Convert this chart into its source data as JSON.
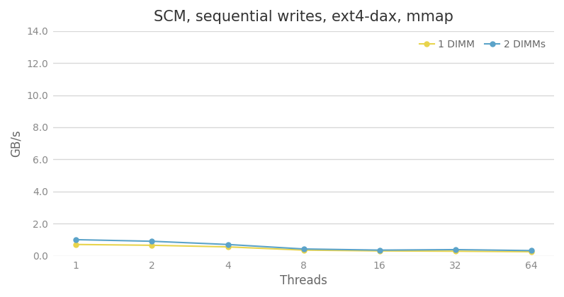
{
  "title": "SCM, sequential writes, ext4-dax, mmap",
  "xlabel": "Threads",
  "ylabel": "GB/s",
  "x_values": [
    1,
    2,
    4,
    8,
    16,
    32,
    64
  ],
  "x_labels": [
    "1",
    "2",
    "4",
    "8",
    "16",
    "32",
    "64"
  ],
  "series": [
    {
      "label": "1 DIMM",
      "values": [
        0.7,
        0.65,
        0.55,
        0.35,
        0.3,
        0.28,
        0.25
      ],
      "color": "#e8d44d",
      "marker": "o",
      "marker_size": 5,
      "linewidth": 1.5
    },
    {
      "label": "2 DIMMs",
      "values": [
        1.0,
        0.9,
        0.7,
        0.42,
        0.35,
        0.38,
        0.32
      ],
      "color": "#5ba3c9",
      "marker": "o",
      "marker_size": 5,
      "linewidth": 1.5
    }
  ],
  "ylim": [
    0,
    14.0
  ],
  "yticks": [
    0.0,
    2.0,
    4.0,
    6.0,
    8.0,
    10.0,
    12.0,
    14.0
  ],
  "ytick_labels": [
    "0.0",
    "2.0",
    "4.0",
    "6.0",
    "8.0",
    "10.0",
    "12.0",
    "14.0"
  ],
  "background_color": "#ffffff",
  "plot_background_color": "#ffffff",
  "grid_color": "#d8d8d8",
  "title_fontsize": 15,
  "axis_label_fontsize": 12,
  "tick_fontsize": 10,
  "legend_fontsize": 10,
  "tick_color": "#888888",
  "label_color": "#666666",
  "title_color": "#333333"
}
